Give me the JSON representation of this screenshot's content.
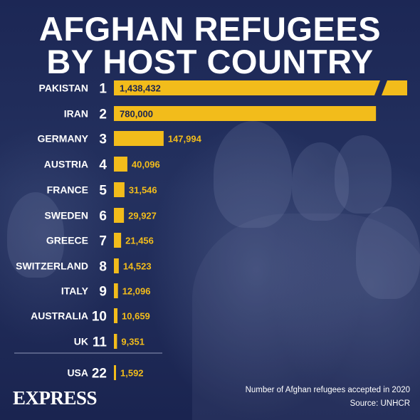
{
  "title": {
    "line1": "AFGHAN REFUGEES",
    "line2": "BY HOST COUNTRY"
  },
  "colors": {
    "bar": "#f2bc1b",
    "background": "#1f2a5a",
    "text": "#ffffff"
  },
  "chart_data": {
    "type": "bar",
    "orientation": "horizontal",
    "title": "AFGHAN REFUGEES BY HOST COUNTRY",
    "categories": [
      "PAKISTAN",
      "IRAN",
      "GERMANY",
      "AUSTRIA",
      "FRANCE",
      "SWEDEN",
      "GREECE",
      "SWITZERLAND",
      "ITALY",
      "AUSTRALIA",
      "UK",
      "USA"
    ],
    "ranks": [
      "1",
      "2",
      "3",
      "4",
      "5",
      "6",
      "7",
      "8",
      "9",
      "10",
      "11",
      "22"
    ],
    "values": [
      1438432,
      780000,
      147994,
      40096,
      31546,
      29927,
      21456,
      14523,
      12096,
      10659,
      9351,
      1592
    ],
    "value_labels": [
      "1,438,432",
      "780,000",
      "147,994",
      "40,096",
      "31,546",
      "29,927",
      "21,456",
      "14,523",
      "12,096",
      "10,659",
      "9,351",
      "1,592"
    ],
    "broken_axis_first_bar": true,
    "grid": false,
    "legend": "none"
  },
  "footer": {
    "brand": "EXPRESS",
    "note": "Number of Afghan refugees accepted in 2020",
    "source": "Source: UNHCR"
  }
}
